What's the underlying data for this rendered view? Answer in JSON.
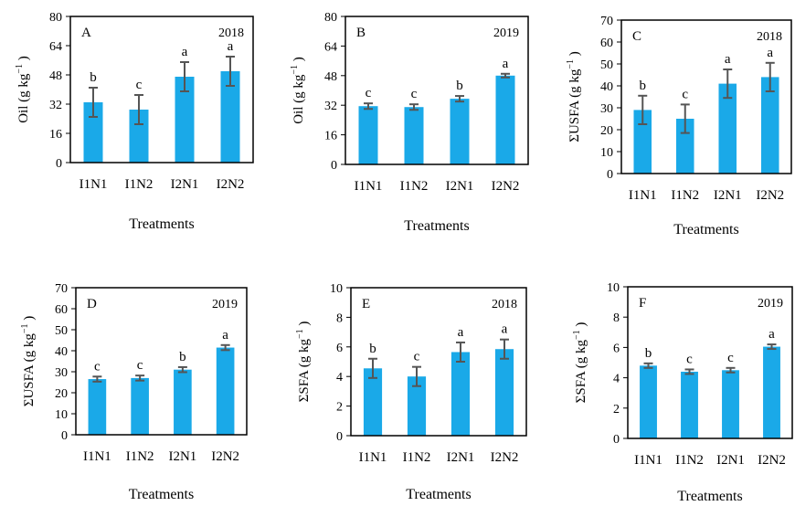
{
  "colors": {
    "bar": "#1aa9e8",
    "error": "#555555",
    "axis": "#000000"
  },
  "chart_data": [
    {
      "type": "bar",
      "panel": "A",
      "year": "2018",
      "categories": [
        "I1N1",
        "I1N2",
        "I2N1",
        "I2N2"
      ],
      "values": [
        33,
        29,
        47,
        50
      ],
      "errors": [
        8,
        8,
        8,
        8
      ],
      "letters": [
        "b",
        "c",
        "a",
        "a"
      ],
      "ylabel": "Oil (g kg",
      "ylabel_sup": "−1",
      "ylabel_end": " )",
      "xlabel": "Treatments",
      "ylim": [
        0,
        80
      ],
      "yticks": [
        0,
        16,
        32,
        48,
        64,
        80
      ]
    },
    {
      "type": "bar",
      "panel": "B",
      "year": "2019",
      "categories": [
        "I1N1",
        "I1N2",
        "I2N1",
        "I2N2"
      ],
      "values": [
        31.5,
        31,
        35.5,
        48
      ],
      "errors": [
        1.5,
        1.5,
        1.5,
        1
      ],
      "letters": [
        "c",
        "c",
        "b",
        "a"
      ],
      "ylabel": "Oil (g kg",
      "ylabel_sup": "−1",
      "ylabel_end": " )",
      "xlabel": "Treatments",
      "ylim": [
        0,
        80
      ],
      "yticks": [
        0,
        16,
        32,
        48,
        64,
        80
      ]
    },
    {
      "type": "bar",
      "panel": "C",
      "year": "2018",
      "categories": [
        "I1N1",
        "I1N2",
        "I2N1",
        "I2N2"
      ],
      "values": [
        29,
        25,
        41,
        44
      ],
      "errors": [
        6.5,
        6.5,
        6.5,
        6.5
      ],
      "letters": [
        "b",
        "c",
        "a",
        "a"
      ],
      "ylabel": "ΣUSFA (g kg",
      "ylabel_sup": "−1",
      "ylabel_end": " )",
      "xlabel": "Treatments",
      "ylim": [
        0,
        70
      ],
      "yticks": [
        0,
        10,
        20,
        30,
        40,
        50,
        60,
        70
      ]
    },
    {
      "type": "bar",
      "panel": "D",
      "year": "2019",
      "categories": [
        "I1N1",
        "I1N2",
        "I2N1",
        "I2N2"
      ],
      "values": [
        26.5,
        27,
        31,
        41.5
      ],
      "errors": [
        1.2,
        1.2,
        1.2,
        1.2
      ],
      "letters": [
        "c",
        "c",
        "b",
        "a"
      ],
      "ylabel": "ΣUSFA (g kg",
      "ylabel_sup": "−1",
      "ylabel_end": " )",
      "xlabel": "Treatments",
      "ylim": [
        0,
        70
      ],
      "yticks": [
        0,
        10,
        20,
        30,
        40,
        50,
        60,
        70
      ]
    },
    {
      "type": "bar",
      "panel": "E",
      "year": "2018",
      "categories": [
        "I1N1",
        "I1N2",
        "I2N1",
        "I2N2"
      ],
      "values": [
        4.55,
        4.0,
        5.65,
        5.85
      ],
      "errors": [
        0.65,
        0.65,
        0.65,
        0.65
      ],
      "letters": [
        "b",
        "c",
        "a",
        "a"
      ],
      "ylabel": "ΣSFA (g kg",
      "ylabel_sup": "−1",
      "ylabel_end": " )",
      "xlabel": "Treatments",
      "ylim": [
        0,
        10
      ],
      "yticks": [
        0,
        2,
        4,
        6,
        8,
        10
      ]
    },
    {
      "type": "bar",
      "panel": "F",
      "year": "2019",
      "categories": [
        "I1N1",
        "I1N2",
        "I2N1",
        "I2N2"
      ],
      "values": [
        4.8,
        4.4,
        4.5,
        6.05
      ],
      "errors": [
        0.15,
        0.15,
        0.15,
        0.15
      ],
      "letters": [
        "b",
        "c",
        "c",
        "a"
      ],
      "ylabel": "ΣSFA (g kg",
      "ylabel_sup": "−1",
      "ylabel_end": " )",
      "xlabel": "Treatments",
      "ylim": [
        0,
        10
      ],
      "yticks": [
        0,
        2,
        4,
        6,
        8,
        10
      ]
    }
  ]
}
